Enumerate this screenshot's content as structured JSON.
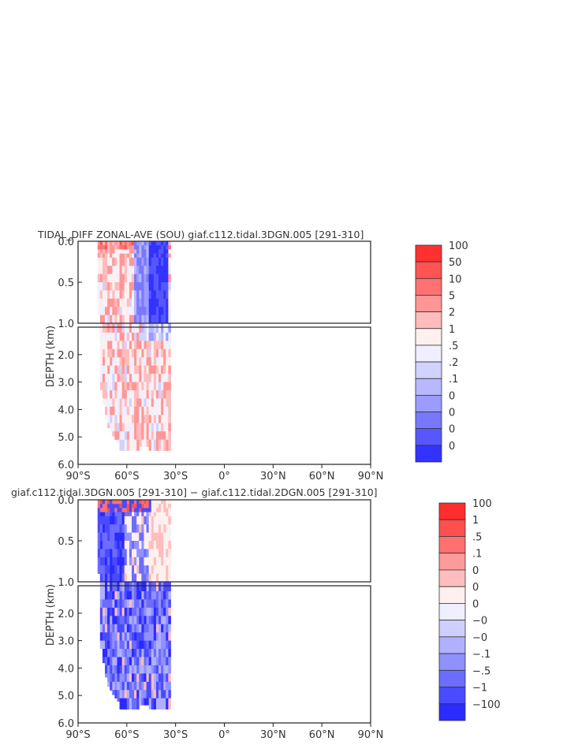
{
  "chart_data": [
    {
      "type": "heatmap",
      "title": "TIDAL_DIFF ZONAL-AVE (SOU) giaf.c112.tidal.3DGN.005 [291-310]",
      "ylabel": "DEPTH (km)",
      "xlabel": "",
      "x_ticks": [
        "90°S",
        "60°S",
        "30°S",
        "0°",
        "30°N",
        "60°N",
        "90°N"
      ],
      "xlim": [
        -90,
        90
      ],
      "upper_y_ticks": [
        "0.0",
        "0.5",
        "1.0"
      ],
      "upper_ylim": [
        0,
        1
      ],
      "lower_y_ticks": [
        "2.0",
        "3.0",
        "4.0",
        "5.0",
        "6.0"
      ],
      "lower_ylim": [
        1,
        6
      ],
      "data_extent_lat": [
        -78,
        -33
      ],
      "colorbar_labels": [
        "100",
        "50",
        "10",
        "5",
        "2",
        "1",
        ".5",
        ".2",
        ".1",
        "0",
        "0",
        "0",
        "0"
      ],
      "colorbar_colors": [
        "#ff3030",
        "#ff5454",
        "#ff7272",
        "#ff9696",
        "#ffbcbc",
        "#fff0f0",
        "#efefff",
        "#d2d2ff",
        "#b8b8ff",
        "#9c9cff",
        "#7878ff",
        "#5757ff",
        "#3333ff"
      ],
      "dominant_pattern": "mostly red (positive) at depth; blue band near 50S-35S in upper 1 km"
    },
    {
      "type": "heatmap",
      "title": "giaf.c112.tidal.3DGN.005 [291-310] − giaf.c112.tidal.2DGN.005 [291-310]",
      "ylabel": "DEPTH (km)",
      "xlabel": "",
      "x_ticks": [
        "90°S",
        "60°S",
        "30°S",
        "0°",
        "30°N",
        "60°N",
        "90°N"
      ],
      "xlim": [
        -90,
        90
      ],
      "upper_y_ticks": [
        "0.0",
        "0.5",
        "1.0"
      ],
      "upper_ylim": [
        0,
        1
      ],
      "lower_y_ticks": [
        "2.0",
        "3.0",
        "4.0",
        "5.0",
        "6.0"
      ],
      "lower_ylim": [
        1,
        6
      ],
      "data_extent_lat": [
        -78,
        -33
      ],
      "colorbar_labels": [
        "100",
        "1",
        ".5",
        ".1",
        "0",
        "0",
        "0",
        "−0",
        "−0",
        "−.1",
        "−.5",
        "−1",
        "−100"
      ],
      "colorbar_colors": [
        "#ff2d2d",
        "#ff4f4f",
        "#ff7070",
        "#ff9a9a",
        "#ffbdbd",
        "#fff0f0",
        "#efefff",
        "#cfcfff",
        "#b0b0ff",
        "#9090ff",
        "#6c6cff",
        "#4a4aff",
        "#2b2bff"
      ],
      "dominant_pattern": "mostly blue (negative) at depth; red speckle near surface 75S-45S"
    }
  ]
}
